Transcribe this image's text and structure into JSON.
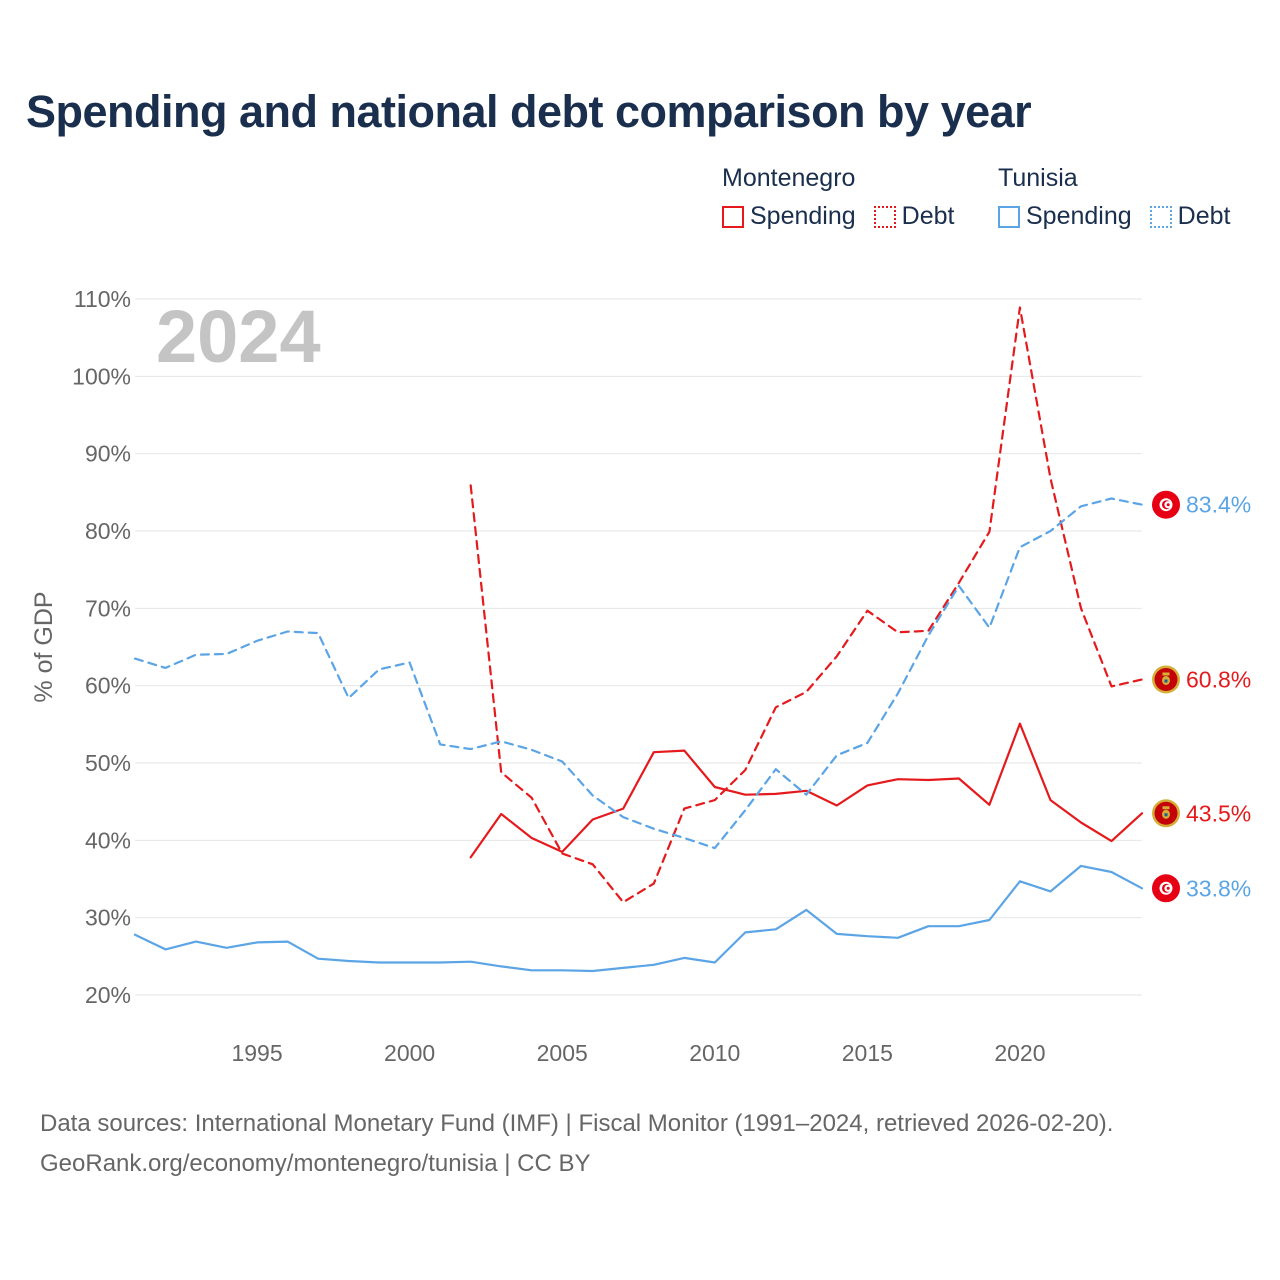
{
  "title": "Spending and national debt comparison by year",
  "legend": {
    "groups": [
      {
        "name": "Montenegro",
        "color": "#e41a1c",
        "items": [
          {
            "label": "Spending",
            "style": "solid"
          },
          {
            "label": "Debt",
            "style": "dotted"
          }
        ]
      },
      {
        "name": "Tunisia",
        "color": "#5ba4e5",
        "items": [
          {
            "label": "Spending",
            "style": "solid"
          },
          {
            "label": "Debt",
            "style": "dotted"
          }
        ]
      }
    ]
  },
  "source_lines": [
    "Data sources: International Monetary Fund (IMF) | Fiscal Monitor (1991–2024, retrieved 2026-02-20).",
    "GeoRank.org/economy/montenegro/tunisia | CC BY"
  ],
  "chart_data": {
    "type": "line",
    "title": "Spending and national debt comparison by year",
    "year_watermark": "2024",
    "ylabel": "% of GDP",
    "xlabel": "",
    "xlim": [
      1991,
      2024
    ],
    "ylim": [
      20,
      110
    ],
    "y_ticks": [
      20,
      30,
      40,
      50,
      60,
      70,
      80,
      90,
      100,
      110
    ],
    "y_tick_labels": [
      "20%",
      "30%",
      "40%",
      "50%",
      "60%",
      "70%",
      "80%",
      "90%",
      "100%",
      "110%"
    ],
    "x_ticks": [
      1995,
      2000,
      2005,
      2010,
      2015,
      2020
    ],
    "x_tick_labels": [
      "1995",
      "2000",
      "2005",
      "2010",
      "2015",
      "2020"
    ],
    "grid": true,
    "series": [
      {
        "name": "Montenegro Spending",
        "country": "Montenegro",
        "measure": "Spending",
        "color": "#e41a1c",
        "dashed": false,
        "end_label": "43.5%",
        "flag": "montenegro-flag-icon",
        "x": [
          2002,
          2003,
          2004,
          2005,
          2006,
          2007,
          2008,
          2009,
          2010,
          2011,
          2012,
          2013,
          2014,
          2015,
          2016,
          2017,
          2018,
          2019,
          2020,
          2021,
          2022,
          2023,
          2024
        ],
        "y": [
          37.8,
          43.4,
          40.3,
          38.5,
          42.7,
          44.1,
          51.4,
          51.6,
          46.9,
          45.9,
          46.0,
          46.4,
          44.5,
          47.1,
          47.9,
          47.8,
          48.0,
          44.6,
          55.1,
          45.2,
          42.3,
          39.9,
          43.5
        ]
      },
      {
        "name": "Montenegro Debt",
        "country": "Montenegro",
        "measure": "Debt",
        "color": "#e41a1c",
        "dashed": true,
        "end_label": "60.8%",
        "flag": "montenegro-flag-icon",
        "x": [
          2002,
          2003,
          2004,
          2005,
          2006,
          2007,
          2008,
          2009,
          2010,
          2011,
          2012,
          2013,
          2014,
          2015,
          2016,
          2017,
          2018,
          2019,
          2020,
          2021,
          2022,
          2023,
          2024
        ],
        "y": [
          85.9,
          48.8,
          45.5,
          38.3,
          36.9,
          32.0,
          34.4,
          44.1,
          45.2,
          49.1,
          57.2,
          59.2,
          63.8,
          69.7,
          66.9,
          67.1,
          73.3,
          79.9,
          108.9,
          86.8,
          70.0,
          59.9,
          60.8
        ]
      },
      {
        "name": "Tunisia Spending",
        "country": "Tunisia",
        "measure": "Spending",
        "color": "#5ba4e5",
        "dashed": false,
        "end_label": "33.8%",
        "flag": "tunisia-flag-icon",
        "x": [
          1991,
          1992,
          1993,
          1994,
          1995,
          1996,
          1997,
          1998,
          1999,
          2000,
          2001,
          2002,
          2003,
          2004,
          2005,
          2006,
          2007,
          2008,
          2009,
          2010,
          2011,
          2012,
          2013,
          2014,
          2015,
          2016,
          2017,
          2018,
          2019,
          2020,
          2021,
          2022,
          2023,
          2024
        ],
        "y": [
          27.8,
          25.9,
          26.9,
          26.1,
          26.8,
          26.9,
          24.7,
          24.4,
          24.2,
          24.2,
          24.2,
          24.3,
          23.7,
          23.2,
          23.2,
          23.1,
          23.5,
          23.9,
          24.8,
          24.2,
          28.1,
          28.5,
          31.0,
          27.9,
          27.6,
          27.4,
          28.9,
          28.9,
          29.7,
          34.7,
          33.4,
          36.7,
          35.9,
          33.8
        ]
      },
      {
        "name": "Tunisia Debt",
        "country": "Tunisia",
        "measure": "Debt",
        "color": "#5ba4e5",
        "dashed": true,
        "end_label": "83.4%",
        "flag": "tunisia-flag-icon",
        "x": [
          1991,
          1992,
          1993,
          1994,
          1995,
          1996,
          1997,
          1998,
          1999,
          2000,
          2001,
          2002,
          2003,
          2004,
          2005,
          2006,
          2007,
          2008,
          2009,
          2010,
          2011,
          2012,
          2013,
          2014,
          2015,
          2016,
          2017,
          2018,
          2019,
          2020,
          2021,
          2022,
          2023,
          2024
        ],
        "y": [
          63.5,
          62.3,
          64.0,
          64.1,
          65.8,
          67.0,
          66.8,
          58.4,
          62.1,
          63.0,
          52.4,
          51.8,
          52.8,
          51.7,
          50.2,
          45.8,
          43.0,
          41.5,
          40.3,
          39.0,
          43.9,
          49.2,
          45.9,
          51.0,
          52.6,
          59.0,
          66.5,
          72.9,
          67.5,
          77.9,
          80.0,
          83.2,
          84.2,
          83.4
        ]
      }
    ]
  }
}
